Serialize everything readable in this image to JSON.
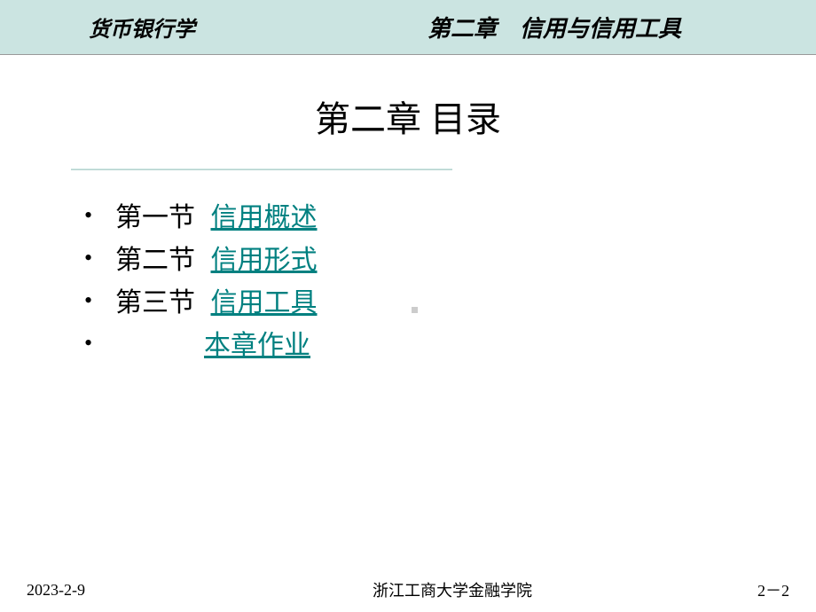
{
  "header": {
    "course_name": "货币银行学",
    "chapter_header": "第二章　信用与信用工具"
  },
  "content": {
    "title": "第二章  目录",
    "toc": [
      {
        "label": "第一节",
        "link": "信用概述"
      },
      {
        "label": "第二节",
        "link": "信用形式"
      },
      {
        "label": "第三节",
        "link": "信用工具"
      }
    ],
    "homework": "本章作业"
  },
  "footer": {
    "date": "2023-2-9",
    "school": "浙江工商大学金融学院",
    "page": "2－2"
  },
  "colors": {
    "header_bg": "#cbe4e1",
    "link_color": "#008080",
    "text_color": "#000000",
    "divider_color": "#cce5e1"
  }
}
